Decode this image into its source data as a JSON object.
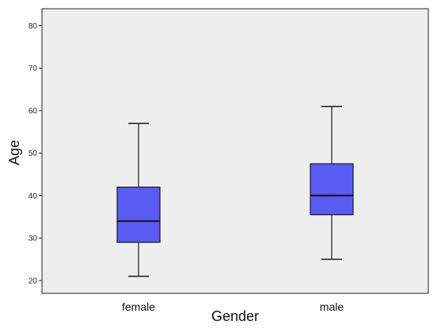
{
  "chart_data": {
    "type": "box",
    "title": "",
    "xlabel": "Gender",
    "ylabel": "Age",
    "ylim": [
      17,
      84
    ],
    "yticks": [
      20,
      30,
      40,
      50,
      60,
      70,
      80
    ],
    "grid": false,
    "categories": [
      "female",
      "male"
    ],
    "boxes": [
      {
        "category": "female",
        "min": 21,
        "q1": 29,
        "median": 34,
        "q3": 42,
        "max": 57
      },
      {
        "category": "male",
        "min": 25,
        "q1": 35.5,
        "median": 40,
        "q3": 47.5,
        "max": 61
      }
    ],
    "colors": {
      "box_fill": "#5a5af5",
      "plot_background": "#eeeeee",
      "stroke": "#1a1a1a"
    }
  }
}
